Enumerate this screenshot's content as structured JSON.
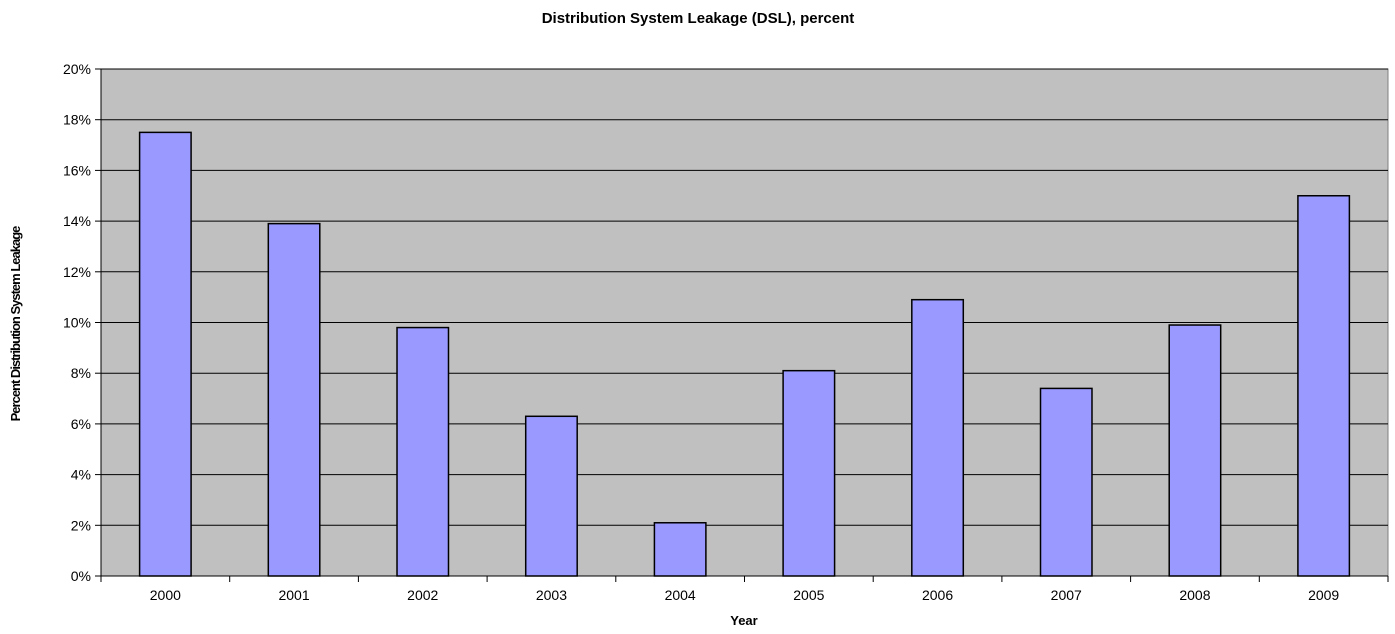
{
  "chart_data": {
    "type": "bar",
    "title": "Distribution System Leakage (DSL), percent",
    "xlabel": "Year",
    "ylabel": "Percent Distribution System Leakage",
    "categories": [
      "2000",
      "2001",
      "2002",
      "2003",
      "2004",
      "2005",
      "2006",
      "2007",
      "2008",
      "2009"
    ],
    "values": [
      17.5,
      13.9,
      9.8,
      6.3,
      2.1,
      8.1,
      10.9,
      7.4,
      9.9,
      15.0
    ],
    "ylim": [
      0,
      20
    ],
    "yticks": [
      0,
      2,
      4,
      6,
      8,
      10,
      12,
      14,
      16,
      18,
      20
    ],
    "ytick_labels": [
      "0%",
      "2%",
      "4%",
      "6%",
      "8%",
      "10%",
      "12%",
      "14%",
      "16%",
      "18%",
      "20%"
    ],
    "grid": true,
    "legend": "none",
    "colors": {
      "bar_fill": "#9999ff",
      "bar_stroke": "#000000",
      "plot_background": "#c0c0c0",
      "gridline": "#000000"
    }
  }
}
